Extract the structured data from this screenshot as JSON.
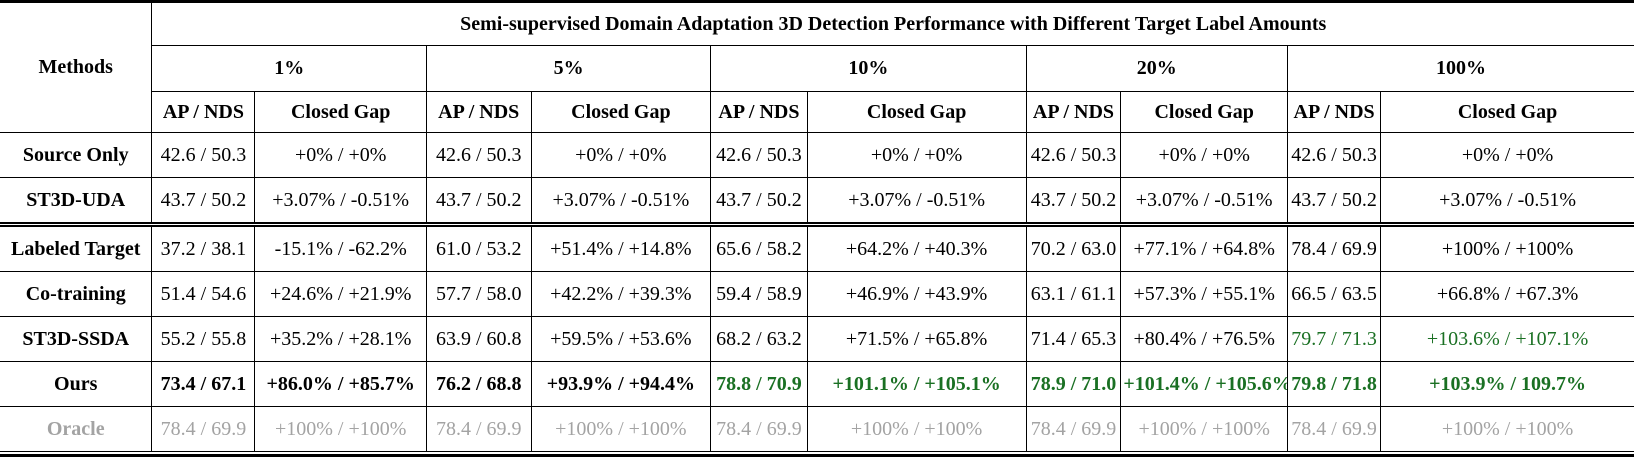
{
  "table": {
    "title": "Semi-supervised Domain Adaptation 3D Detection Performance with Different Target Label Amounts",
    "methods_header": "Methods",
    "columns": [
      {
        "label": "1%"
      },
      {
        "label": "5%"
      },
      {
        "label": "10%"
      },
      {
        "label": "20%"
      },
      {
        "label": "100%"
      }
    ],
    "subheaders": [
      "AP / NDS",
      "Closed Gap"
    ],
    "rows": [
      {
        "method": "Source Only",
        "method_color": "black",
        "double_line_below": false,
        "cells": [
          {
            "ap": "42.6 / 50.3",
            "gap": "+0% / +0%",
            "color": "black",
            "bold": false
          },
          {
            "ap": "42.6 / 50.3",
            "gap": "+0% / +0%",
            "color": "black",
            "bold": false
          },
          {
            "ap": "42.6 / 50.3",
            "gap": "+0% / +0%",
            "color": "black",
            "bold": false
          },
          {
            "ap": "42.6 / 50.3",
            "gap": "+0% / +0%",
            "color": "black",
            "bold": false
          },
          {
            "ap": "42.6 / 50.3",
            "gap": "+0% / +0%",
            "color": "black",
            "bold": false
          }
        ]
      },
      {
        "method": "ST3D-UDA",
        "method_color": "black",
        "double_line_below": true,
        "cells": [
          {
            "ap": "43.7 / 50.2",
            "gap": "+3.07% / -0.51%",
            "color": "black",
            "bold": false
          },
          {
            "ap": "43.7 / 50.2",
            "gap": "+3.07% / -0.51%",
            "color": "black",
            "bold": false
          },
          {
            "ap": "43.7 / 50.2",
            "gap": "+3.07% / -0.51%",
            "color": "black",
            "bold": false
          },
          {
            "ap": "43.7 / 50.2",
            "gap": "+3.07% / -0.51%",
            "color": "black",
            "bold": false
          },
          {
            "ap": "43.7 / 50.2",
            "gap": "+3.07% / -0.51%",
            "color": "black",
            "bold": false
          }
        ]
      },
      {
        "method": "Labeled Target",
        "method_color": "black",
        "double_line_below": false,
        "cells": [
          {
            "ap": "37.2 / 38.1",
            "gap": "-15.1% / -62.2%",
            "color": "black",
            "bold": false
          },
          {
            "ap": "61.0 / 53.2",
            "gap": "+51.4% / +14.8%",
            "color": "black",
            "bold": false
          },
          {
            "ap": "65.6 / 58.2",
            "gap": "+64.2% / +40.3%",
            "color": "black",
            "bold": false
          },
          {
            "ap": "70.2 / 63.0",
            "gap": "+77.1% / +64.8%",
            "color": "black",
            "bold": false
          },
          {
            "ap": "78.4 / 69.9",
            "gap": "+100% / +100%",
            "color": "black",
            "bold": false
          }
        ]
      },
      {
        "method": "Co-training",
        "method_color": "black",
        "double_line_below": false,
        "cells": [
          {
            "ap": "51.4 / 54.6",
            "gap": "+24.6% / +21.9%",
            "color": "black",
            "bold": false
          },
          {
            "ap": "57.7 / 58.0",
            "gap": "+42.2% / +39.3%",
            "color": "black",
            "bold": false
          },
          {
            "ap": "59.4 / 58.9",
            "gap": "+46.9% / +43.9%",
            "color": "black",
            "bold": false
          },
          {
            "ap": "63.1 / 61.1",
            "gap": "+57.3% / +55.1%",
            "color": "black",
            "bold": false
          },
          {
            "ap": "66.5 / 63.5",
            "gap": "+66.8% / +67.3%",
            "color": "black",
            "bold": false
          }
        ]
      },
      {
        "method": "ST3D-SSDA",
        "method_color": "black",
        "double_line_below": false,
        "cells": [
          {
            "ap": "55.2 / 55.8",
            "gap": "+35.2% / +28.1%",
            "color": "black",
            "bold": false
          },
          {
            "ap": "63.9 / 60.8",
            "gap": "+59.5% / +53.6%",
            "color": "black",
            "bold": false
          },
          {
            "ap": "68.2 / 63.2",
            "gap": "+71.5% / +65.8%",
            "color": "black",
            "bold": false
          },
          {
            "ap": "71.4 / 65.3",
            "gap": "+80.4% / +76.5%",
            "color": "black",
            "bold": false
          },
          {
            "ap": "79.7 / 71.3",
            "gap": "+103.6% / +107.1%",
            "color": "green",
            "bold": false
          }
        ]
      },
      {
        "method": "Ours",
        "method_color": "black",
        "double_line_below": false,
        "cells": [
          {
            "ap": "73.4 / 67.1",
            "gap": "+86.0% / +85.7%",
            "color": "black",
            "bold": true
          },
          {
            "ap": "76.2 / 68.8",
            "gap": "+93.9% / +94.4%",
            "color": "black",
            "bold": true
          },
          {
            "ap": "78.8 / 70.9",
            "gap": "+101.1% / +105.1%",
            "color": "green",
            "bold": true
          },
          {
            "ap": "78.9 / 71.0",
            "gap": "+101.4% / +105.6%",
            "color": "green",
            "bold": true
          },
          {
            "ap": "79.8 / 71.8",
            "gap": "+103.9% / 109.7%",
            "color": "green",
            "bold": true
          }
        ]
      },
      {
        "method": "Oracle",
        "method_color": "gray",
        "double_line_below": false,
        "cells": [
          {
            "ap": "78.4 / 69.9",
            "gap": "+100% / +100%",
            "color": "gray",
            "bold": false
          },
          {
            "ap": "78.4 / 69.9",
            "gap": "+100% / +100%",
            "color": "gray",
            "bold": false
          },
          {
            "ap": "78.4 / 69.9",
            "gap": "+100% / +100%",
            "color": "gray",
            "bold": false
          },
          {
            "ap": "78.4 / 69.9",
            "gap": "+100% / +100%",
            "color": "gray",
            "bold": false
          },
          {
            "ap": "78.4 / 69.9",
            "gap": "+100% / +100%",
            "color": "gray",
            "bold": false
          }
        ]
      }
    ]
  },
  "colors": {
    "accent_green": "#1a7023",
    "muted_gray": "#a3a3a3",
    "text_black": "#000000",
    "rule_black": "#000000"
  }
}
